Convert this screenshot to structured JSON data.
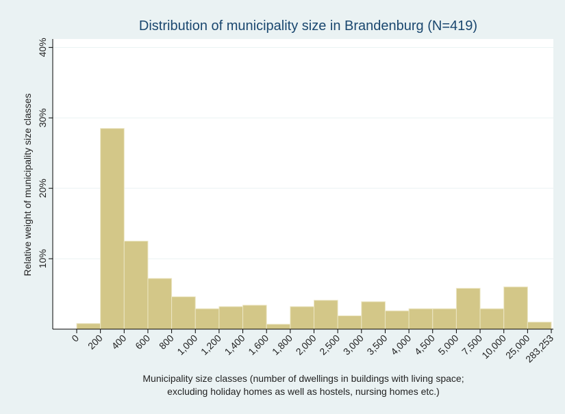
{
  "chart_data": {
    "type": "histogram",
    "title": "Distribution of municipality size in Brandenburg (N=419)",
    "y_label": "Relative weight of municipality size classes",
    "x_label": [
      "Municipality size classes (number of dwellings in buildings with living space;",
      "excluding holiday homes as well as hostels, nursing homes etc.)"
    ],
    "bin_edges": [
      "0",
      "200",
      "400",
      "600",
      "800",
      "1,000",
      "1,200",
      "1,400",
      "1,600",
      "1,800",
      "2,000",
      "2,500",
      "3,000",
      "3,500",
      "4,000",
      "4,500",
      "5,000",
      "7,500",
      "10,000",
      "25,000",
      "283,253"
    ],
    "values": [
      0.8,
      28.5,
      12.5,
      7.2,
      4.6,
      2.9,
      3.2,
      3.4,
      0.7,
      3.2,
      4.1,
      1.9,
      3.9,
      2.6,
      2.9,
      2.9,
      5.8,
      2.9,
      6.0,
      1.0
    ],
    "color": "#d3c788",
    "ylim": [
      0,
      41.2
    ],
    "yticks": [
      {
        "value": 10,
        "label": "10%"
      },
      {
        "value": 20,
        "label": "20%"
      },
      {
        "value": 30,
        "label": "30%"
      },
      {
        "value": 40,
        "label": "40%"
      }
    ],
    "grid": true
  }
}
